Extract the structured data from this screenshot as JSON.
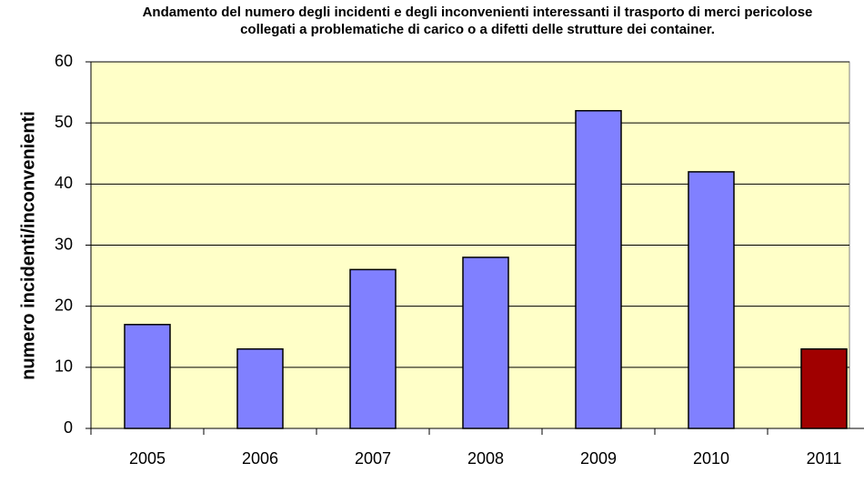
{
  "chart_data": {
    "type": "bar",
    "title": "Andamento del numero degli incidenti e degli inconvenienti interessanti il trasporto di merci pericolose collegati a problematiche di  carico o a difetti delle strutture dei container.",
    "y_label": "numero incidenti/inconvenienti",
    "categories": [
      "2005",
      "2006",
      "2007",
      "2008",
      "2009",
      "2010",
      "2011"
    ],
    "values": [
      17,
      13,
      26,
      28,
      52,
      42,
      13
    ],
    "colors": [
      "#8080ff",
      "#8080ff",
      "#8080ff",
      "#8080ff",
      "#8080ff",
      "#8080ff",
      "#a00000"
    ],
    "ylim": [
      0,
      60
    ],
    "yticks": [
      0,
      10,
      20,
      30,
      40,
      50,
      60
    ],
    "grid": true
  }
}
